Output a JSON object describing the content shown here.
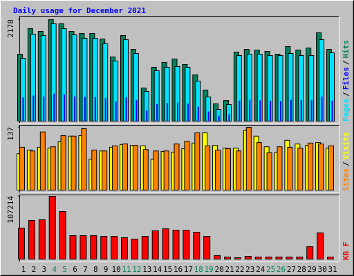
{
  "chart_data": [
    {
      "type": "bar",
      "title": "Daily usage for December 2021",
      "separator": "/",
      "ylim": [
        0,
        2178
      ],
      "yticks": [
        2178
      ],
      "series": [
        {
          "name": "Hits",
          "color": "#00805c",
          "values": [
            1442,
            1987,
            1928,
            2178,
            2090,
            1928,
            1884,
            1884,
            1766,
            1383,
            1840,
            1545,
            721,
            1163,
            1266,
            1339,
            1221,
            1001,
            677,
            383,
            456,
            1486,
            1545,
            1530,
            1501,
            1442,
            1604,
            1530,
            1575,
            1898,
            1545
          ]
        },
        {
          "name": "Files",
          "color": "#0000ff",
          "values": [
            520,
            560,
            540,
            600,
            580,
            540,
            530,
            530,
            500,
            430,
            520,
            460,
            240,
            380,
            400,
            410,
            390,
            320,
            220,
            130,
            160,
            450,
            470,
            460,
            450,
            440,
            470,
            460,
            460,
            540,
            450
          ]
        },
        {
          "name": "Pages",
          "color": "#00e0ff",
          "values": [
            1354,
            1869,
            1840,
            2090,
            1987,
            1854,
            1781,
            1781,
            1663,
            1295,
            1751,
            1457,
            648,
            1089,
            1163,
            1177,
            1163,
            868,
            530,
            265,
            368,
            1413,
            1442,
            1442,
            1413,
            1413,
            1457,
            1413,
            1413,
            1751,
            1472
          ]
        }
      ],
      "legend_order": [
        2,
        1,
        0
      ]
    },
    {
      "type": "bar",
      "ylim": [
        0,
        137
      ],
      "yticks": [
        137
      ],
      "series": [
        {
          "name": "Visits",
          "color": "#ffff00",
          "values": [
            80,
            88,
            94,
            92,
            106,
            118,
            119,
            68,
            86,
            94,
            100,
            98,
            97,
            68,
            85,
            83,
            91,
            103,
            125,
            98,
            92,
            92,
            130,
            118,
            95,
            83,
            109,
            101,
            98,
            104,
            92
          ]
        },
        {
          "name": "Sites",
          "color": "#ff8000",
          "values": [
            94,
            86,
            127,
            95,
            119,
            118,
            134,
            88,
            86,
            97,
            101,
            98,
            89,
            86,
            86,
            101,
            107,
            125,
            97,
            88,
            91,
            86,
            137,
            104,
            82,
            95,
            94,
            92,
            103,
            101,
            97
          ]
        }
      ],
      "legend_order": [
        1,
        0
      ]
    },
    {
      "type": "bar",
      "ylim": [
        0,
        107214
      ],
      "yticks": [
        107214
      ],
      "series": [
        {
          "name": "KB F",
          "color": "#ff0000",
          "values": [
            53600,
            66400,
            67600,
            107214,
            81600,
            40800,
            40800,
            40800,
            39600,
            39600,
            37300,
            35000,
            39600,
            48900,
            52400,
            50100,
            50100,
            46600,
            39600,
            7000,
            4700,
            3500,
            5800,
            4700,
            4700,
            4700,
            4700,
            4700,
            22100,
            45400,
            4700
          ]
        }
      ],
      "legend_order": [
        0
      ],
      "categories": [
        "1",
        "2",
        "3",
        "4",
        "5",
        "6",
        "7",
        "8",
        "9",
        "10",
        "11",
        "12",
        "13",
        "14",
        "15",
        "16",
        "17",
        "18",
        "19",
        "20",
        "21",
        "22",
        "23",
        "24",
        "25",
        "26",
        "27",
        "28",
        "29",
        "30",
        "31"
      ],
      "category_colors": [
        "#000000",
        "#000000",
        "#000000",
        "#00805c",
        "#00805c",
        "#000000",
        "#000000",
        "#000000",
        "#000000",
        "#000000",
        "#00805c",
        "#00805c",
        "#000000",
        "#000000",
        "#000000",
        "#000000",
        "#000000",
        "#00805c",
        "#00805c",
        "#000000",
        "#000000",
        "#000000",
        "#000000",
        "#000000",
        "#00805c",
        "#00805c",
        "#000000",
        "#000000",
        "#000000",
        "#000000",
        "#000000"
      ]
    }
  ]
}
